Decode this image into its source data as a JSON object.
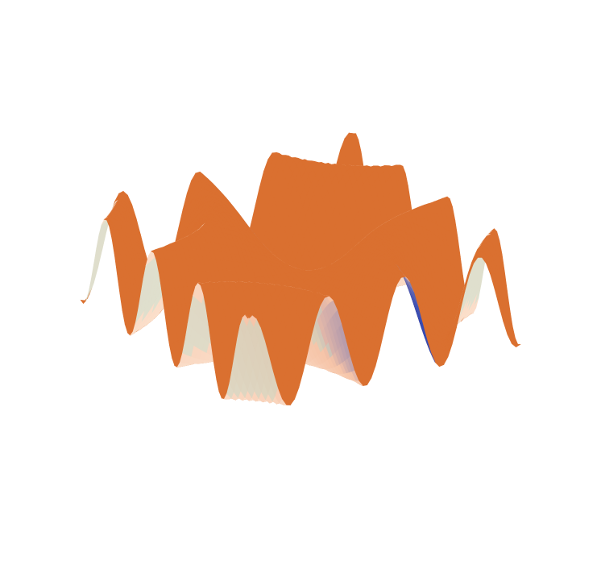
{
  "figure": {
    "kind": "3d-surface",
    "axes_visible": false,
    "box_visible": false,
    "colors": {
      "base": "#f6c4a8",
      "highlight": "#fbe0cc",
      "shadow": "#1e3cb4",
      "rim": "#8fe8e0",
      "underside": "#e27a34",
      "background": "#ffffff"
    }
  }
}
